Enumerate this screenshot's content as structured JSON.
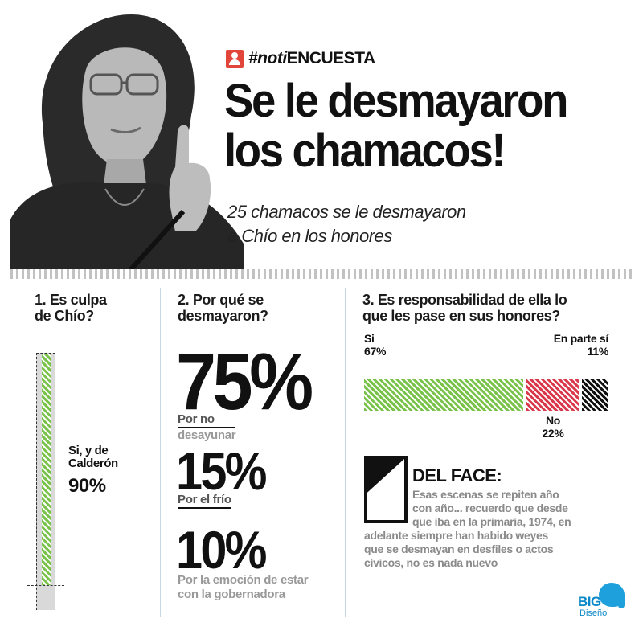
{
  "header": {
    "tag_prefix": "#noti",
    "tag_suffix": "ENCUESTA",
    "headline_line1": "Se le desmayaron",
    "headline_line2": "los chamacos!",
    "subhead_line1": "25 chamacos se le desmayaron",
    "subhead_line2": "a Chío en los honores"
  },
  "q1": {
    "title_line1": "1. Es culpa",
    "title_line2": "de Chío?",
    "answer_line1": "Si, y de",
    "answer_line2": "Calderón",
    "pct": "90%",
    "value": 90
  },
  "q2": {
    "title_line1": "2. Por qué se",
    "title_line2": "desmayaron?",
    "answers": [
      {
        "pct": "75%",
        "label_ul": "Por no",
        "label_rest": " desayunar"
      },
      {
        "pct": "15%",
        "label_ul": "Por el frío",
        "label_rest": ""
      },
      {
        "pct": "10%",
        "label_line1": "Por la emoción de estar",
        "label_line2": "con la gobernadora"
      }
    ]
  },
  "q3": {
    "title_line1": "3. Es responsabilidad de ella lo",
    "title_line2": "que les pase en sus honores?",
    "segments": [
      {
        "label": "Si",
        "pct": "67%",
        "value": 67,
        "color": "#79c34a"
      },
      {
        "label": "No",
        "pct": "22%",
        "value": 22,
        "color": "#d9394a"
      },
      {
        "label": "En parte sí",
        "pct": "11%",
        "value": 11,
        "color": "#111111"
      }
    ]
  },
  "face": {
    "title": "DEL FACE:",
    "line1": "Esas escenas se repiten año",
    "line2": "con año... recuerdo que desde",
    "line3": "que iba en la primaria, 1974, en",
    "line4": "adelante siempre han habido weyes",
    "line5": "que se desmayan en desfiles o actos",
    "line6": "cívicos, no es nada nuevo"
  },
  "logo": {
    "big": "BIG",
    "sub": "Diseño"
  },
  "colors": {
    "green": "#79c34a",
    "red": "#d9394a",
    "black": "#111111",
    "tag_red": "#e2463a",
    "logo_blue": "#1ea0dc"
  }
}
